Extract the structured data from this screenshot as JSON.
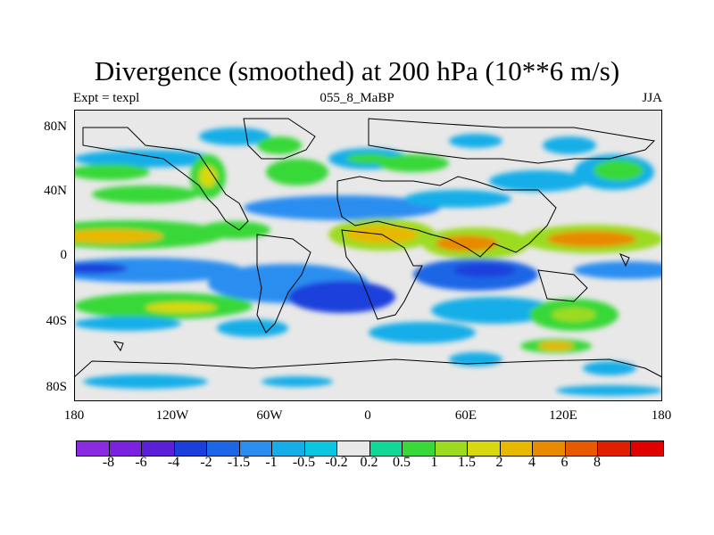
{
  "title": "Divergence (smoothed) at 200 hPa (10**6 m/s)",
  "subtitle": {
    "left": "Expt = texpl",
    "center": "055_8_MaBP",
    "right": "JJA"
  },
  "y_ticks": [
    "80N",
    "40N",
    "0",
    "40S",
    "80S"
  ],
  "x_ticks": [
    "180",
    "120W",
    "60W",
    "0",
    "60E",
    "120E",
    "180"
  ],
  "colorbar": {
    "colors": [
      "#8a2be2",
      "#7b22e0",
      "#5a1fd6",
      "#1a3fdb",
      "#1d66e6",
      "#2a8ef0",
      "#16aee8",
      "#0ac6e0",
      "#e8e8e8",
      "#10d998",
      "#38d838",
      "#9cdb20",
      "#d8d810",
      "#e8b800",
      "#e88a00",
      "#e85a00",
      "#e01e00",
      "#e00000"
    ],
    "labels": [
      "-8",
      "-6",
      "-4",
      "-2",
      "-1.5",
      "-1",
      "-0.5",
      "-0.2",
      "0.2",
      "0.5",
      "1",
      "1.5",
      "2",
      "4",
      "6",
      "8"
    ]
  },
  "map": {
    "background": "#e8e8e8",
    "coastline_color": "#000000"
  }
}
